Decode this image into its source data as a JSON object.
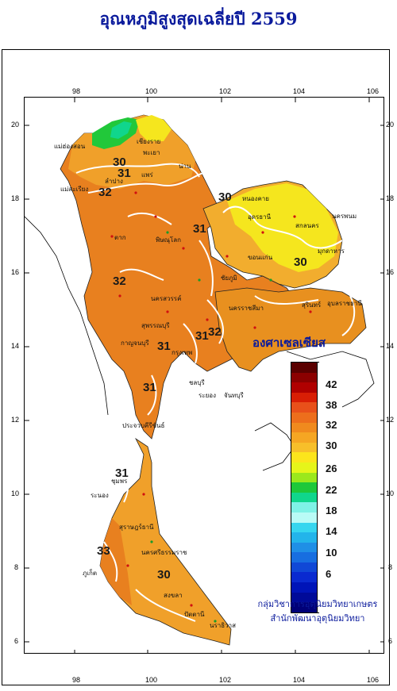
{
  "title": "อุณหภูมิสูงสุดเฉลี่ยปี  2559",
  "axes": {
    "x_ticks": [
      "98",
      "100",
      "102",
      "104",
      "106"
    ],
    "y_ticks": [
      "20",
      "18",
      "16",
      "14",
      "12",
      "10",
      "8",
      "6"
    ]
  },
  "contour_labels": [
    "30",
    "31",
    "32",
    "30",
    "31",
    "30",
    "32",
    "31",
    "31",
    "32",
    "31",
    "31",
    "33",
    "30"
  ],
  "places": [
    "เชียงราย",
    "แม่ฮ่องสอน",
    "พะเยา",
    "น่าน",
    "แพร่",
    "ลำปาง",
    "แม่สะเรียง",
    "หนองคาย",
    "อุดรธานี",
    "สกลนคร",
    "นครพนม",
    "ตาก",
    "พิษณุโลก",
    "มุกดาหาร",
    "ขอนแก่น",
    "ชัยภูมิ",
    "นครสวรรค์",
    "นครราชสีมา",
    "อุบลราชธานี",
    "สุรินทร์",
    "กาญจนบุรี",
    "สุพรรณบุรี",
    "กรุงเทพ",
    "ชลบุรี",
    "ระยอง",
    "จันทบุรี",
    "ประจวบคีรีขันธ์",
    "ชุมพร",
    "ระนอง",
    "สุราษฎร์ธานี",
    "ภูเก็ต",
    "นครศรีธรรมราช",
    "สงขลา",
    "ปัตตานี",
    "นราธิวาส"
  ],
  "sea_label": "องศาเซลเซียส",
  "legend": {
    "labels": [
      "42",
      "38",
      "32",
      "30",
      "26",
      "22",
      "18",
      "14",
      "10",
      "6"
    ],
    "colors": [
      "#5a0000",
      "#8b0000",
      "#b00000",
      "#d81e05",
      "#e8501a",
      "#ed6e1c",
      "#f08a1e",
      "#f5a623",
      "#f7bf2a",
      "#fce51c",
      "#e6f51a",
      "#9be81c",
      "#1ec83a",
      "#10d68c",
      "#7ff2e6",
      "#b9fbf6",
      "#36d6ef",
      "#23b4ea",
      "#1f8fe6",
      "#176ee0",
      "#1048d6",
      "#0a2ad0",
      "#0014b8",
      "#000a99",
      "#000078"
    ]
  },
  "credit": {
    "line1": "กลุ่มวิชาการอุตุนิยมวิทยาเกษตร",
    "line2": "สำนักพัฒนาอุตุนิยมวิทยา"
  },
  "colors": {
    "land_orange": "#e88a22",
    "land_light": "#f2ad2e",
    "land_yellow": "#f5e61e",
    "accent_title": "#0a1a9c"
  }
}
